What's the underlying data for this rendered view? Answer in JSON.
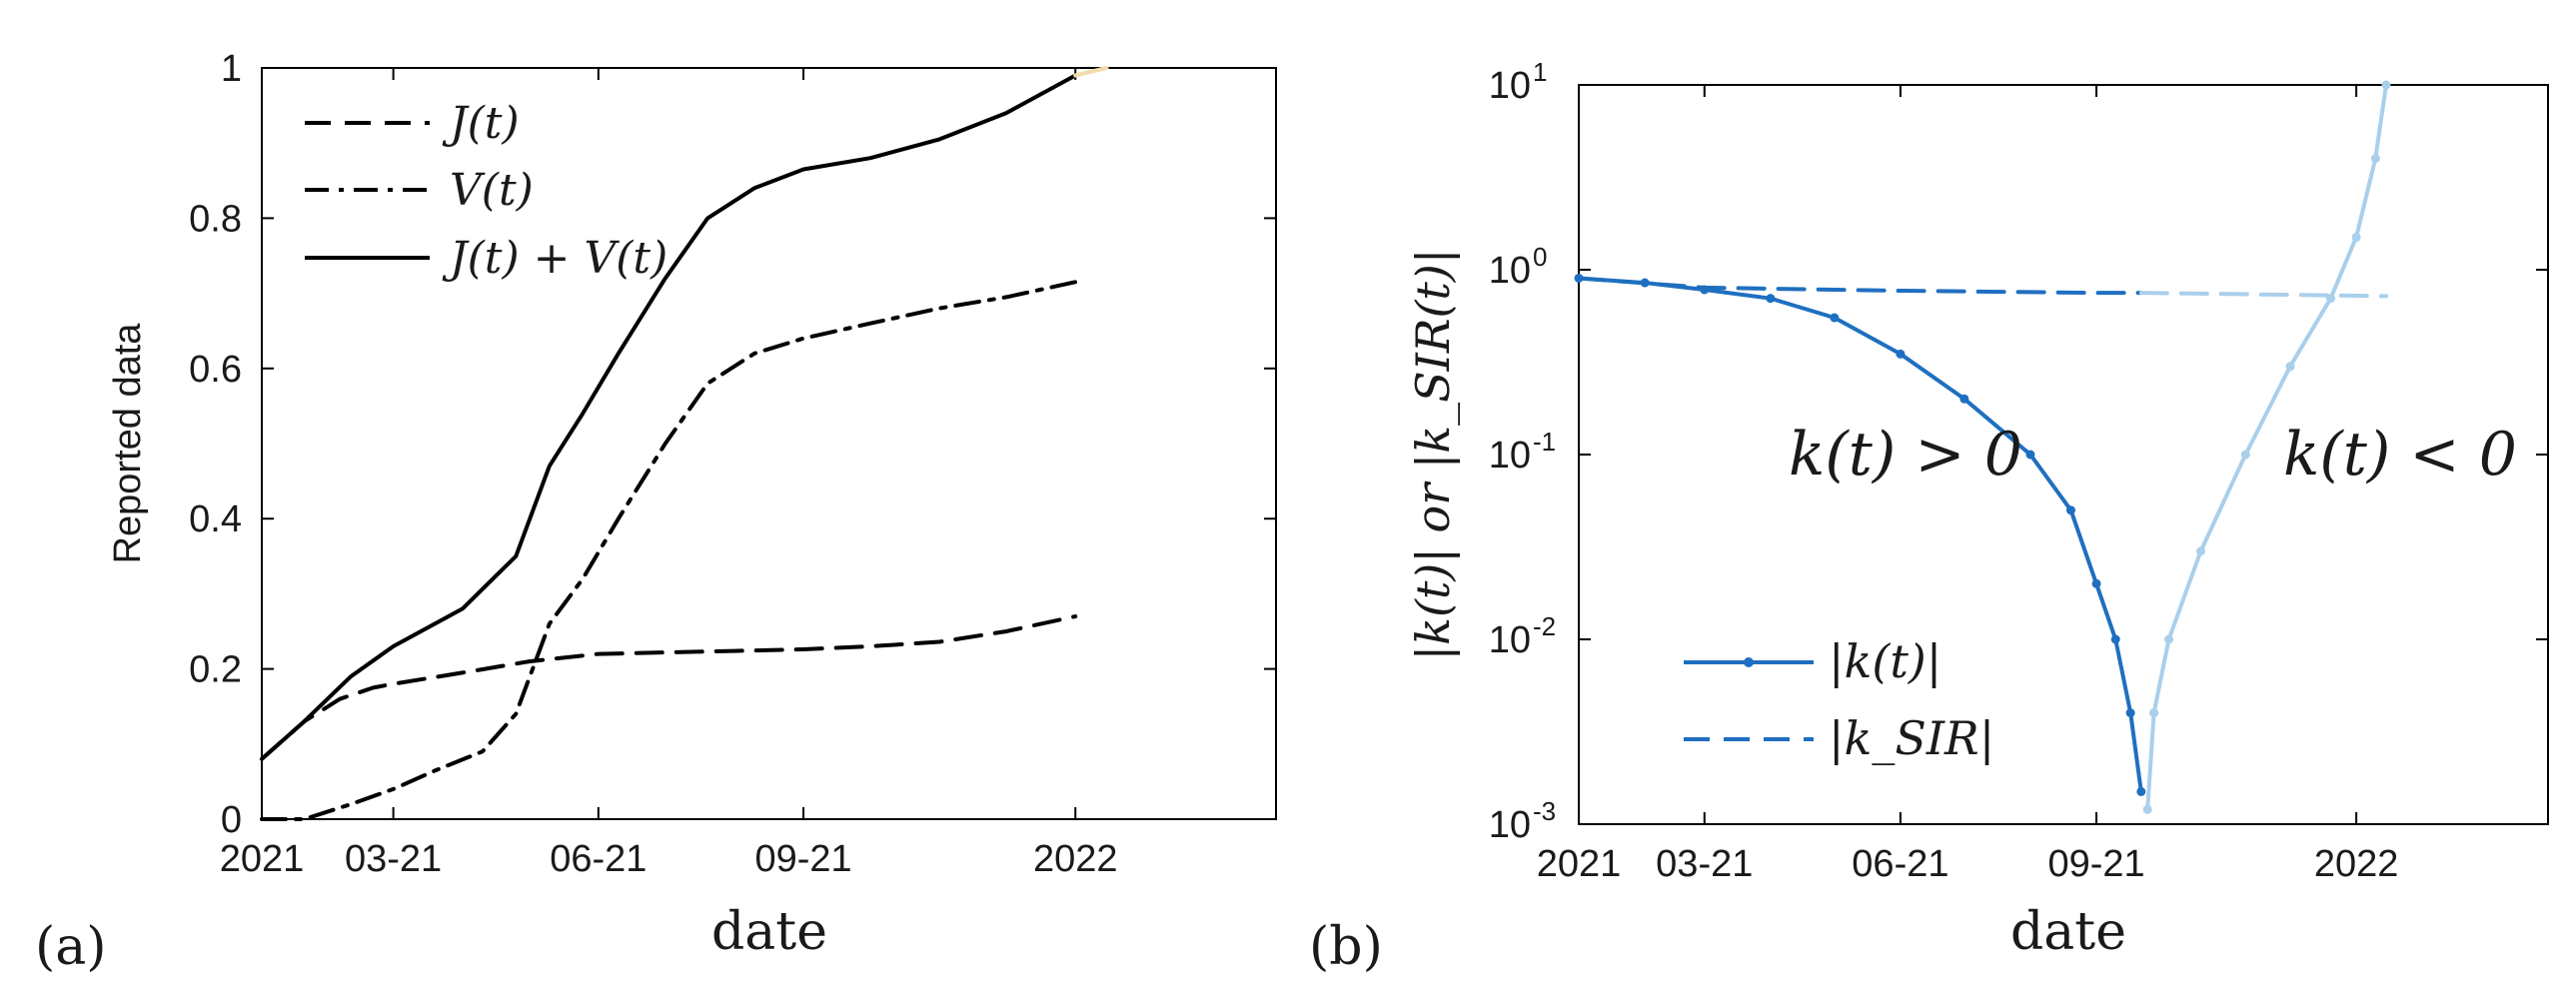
{
  "panels": {
    "a": {
      "tag": "(a)"
    },
    "b": {
      "tag": "(b)"
    }
  },
  "chart_data": [
    {
      "type": "line",
      "xlabel": "date",
      "ylabel": "Reported data",
      "ylim": [
        0,
        1
      ],
      "xlim": [
        "2021-01-01",
        "2022-04-01"
      ],
      "x_ticks": [
        {
          "date": "2021-01-01",
          "label": "2021"
        },
        {
          "date": "2021-03-01",
          "label": "03-21"
        },
        {
          "date": "2021-06-01",
          "label": "06-21"
        },
        {
          "date": "2021-09-01",
          "label": "09-21"
        },
        {
          "date": "2022-01-01",
          "label": "2022"
        }
      ],
      "y_ticks": [
        {
          "value": 0,
          "label": "0"
        },
        {
          "value": 0.2,
          "label": "0.2"
        },
        {
          "value": 0.4,
          "label": "0.4"
        },
        {
          "value": 0.6,
          "label": "0.6"
        },
        {
          "value": 0.8,
          "label": "0.8"
        },
        {
          "value": 1,
          "label": "1"
        }
      ],
      "legend_position": "top-left",
      "series": [
        {
          "name": "J(t)",
          "style": "dashed",
          "color": "#000000",
          "x": [
            "2021-01-01",
            "2021-01-20",
            "2021-02-05",
            "2021-02-20",
            "2021-03-01",
            "2021-04-01",
            "2021-05-01",
            "2021-06-01",
            "2021-07-01",
            "2021-08-01",
            "2021-09-01",
            "2021-10-01",
            "2021-11-01",
            "2021-12-01",
            "2022-01-01"
          ],
          "y": [
            0.08,
            0.13,
            0.16,
            0.175,
            0.18,
            0.195,
            0.21,
            0.22,
            0.222,
            0.224,
            0.226,
            0.23,
            0.236,
            0.25,
            0.27
          ]
        },
        {
          "name": "V(t)",
          "style": "dash-dot",
          "color": "#000000",
          "x": [
            "2021-01-01",
            "2021-01-20",
            "2021-02-10",
            "2021-03-01",
            "2021-03-20",
            "2021-04-10",
            "2021-04-25",
            "2021-05-10",
            "2021-05-25",
            "2021-06-10",
            "2021-07-01",
            "2021-07-20",
            "2021-08-10",
            "2021-09-01",
            "2021-10-01",
            "2021-11-01",
            "2021-12-01",
            "2022-01-01"
          ],
          "y": [
            0,
            0,
            0.02,
            0.04,
            0.065,
            0.09,
            0.14,
            0.26,
            0.32,
            0.4,
            0.5,
            0.58,
            0.62,
            0.64,
            0.66,
            0.68,
            0.695,
            0.715
          ]
        },
        {
          "name": "J(t) + V(t)",
          "style": "solid",
          "color": "#000000",
          "x": [
            "2021-01-01",
            "2021-01-20",
            "2021-02-10",
            "2021-03-01",
            "2021-04-01",
            "2021-04-25",
            "2021-05-10",
            "2021-05-25",
            "2021-06-10",
            "2021-07-01",
            "2021-07-20",
            "2021-08-10",
            "2021-09-01",
            "2021-10-01",
            "2021-11-01",
            "2021-12-01",
            "2022-01-01"
          ],
          "y": [
            0.08,
            0.13,
            0.19,
            0.23,
            0.28,
            0.35,
            0.47,
            0.54,
            0.62,
            0.72,
            0.8,
            0.84,
            0.865,
            0.88,
            0.905,
            0.94,
            0.99
          ]
        },
        {
          "style": "solid",
          "color": "#f2dcae",
          "x": [
            "2022-01-01",
            "2022-01-15"
          ],
          "y": [
            0.99,
            1.0
          ]
        }
      ]
    },
    {
      "type": "line",
      "xlabel": "date",
      "ylabel": "|k(t)| or |k_SIR(t)|",
      "y_scale": "log",
      "ylim": [
        0.001,
        10
      ],
      "xlim": [
        "2021-01-01",
        "2022-04-01"
      ],
      "x_ticks": [
        {
          "date": "2021-01-01",
          "label": "2021"
        },
        {
          "date": "2021-03-01",
          "label": "03-21"
        },
        {
          "date": "2021-06-01",
          "label": "06-21"
        },
        {
          "date": "2021-09-01",
          "label": "09-21"
        },
        {
          "date": "2022-01-01",
          "label": "2022"
        }
      ],
      "y_ticks": [
        {
          "value": 0.001,
          "base": "10",
          "exp": "-3"
        },
        {
          "value": 0.01,
          "base": "10",
          "exp": "-2"
        },
        {
          "value": 0.1,
          "base": "10",
          "exp": "-1"
        },
        {
          "value": 1,
          "base": "10",
          "exp": "0"
        },
        {
          "value": 10,
          "base": "10",
          "exp": "1"
        }
      ],
      "legend_position": "bottom-left",
      "annotations": [
        "k(t) > 0",
        "k(t) < 0"
      ],
      "series": [
        {
          "name": "|k(t)|",
          "style": "solid-dots",
          "color": "#1f6fc0",
          "x": [
            "2021-01-01",
            "2021-02-01",
            "2021-03-01",
            "2021-04-01",
            "2021-05-01",
            "2021-06-01",
            "2021-07-01",
            "2021-08-01",
            "2021-08-20",
            "2021-09-01",
            "2021-09-10",
            "2021-09-17",
            "2021-09-22"
          ],
          "y": [
            0.9,
            0.85,
            0.78,
            0.7,
            0.55,
            0.35,
            0.2,
            0.1,
            0.05,
            0.02,
            0.01,
            0.004,
            0.0015
          ]
        },
        {
          "style": "solid-dots",
          "color": "#a9cfeb",
          "x": [
            "2021-09-25",
            "2021-09-28",
            "2021-10-05",
            "2021-10-20",
            "2021-11-10",
            "2021-12-01",
            "2021-12-20",
            "2022-01-01",
            "2022-01-10",
            "2022-01-15"
          ],
          "y": [
            0.0012,
            0.004,
            0.01,
            0.03,
            0.1,
            0.3,
            0.7,
            1.5,
            4,
            10
          ]
        },
        {
          "name": "|k_SIR|",
          "style": "dashed",
          "color": "#1f6fc0",
          "x": [
            "2021-01-01",
            "2021-03-01",
            "2021-06-01",
            "2021-09-01",
            "2021-09-22"
          ],
          "y": [
            0.9,
            0.8,
            0.77,
            0.75,
            0.75
          ]
        },
        {
          "style": "dashed",
          "color": "#a9cfeb",
          "x": [
            "2021-09-22",
            "2022-01-15"
          ],
          "y": [
            0.75,
            0.72
          ]
        }
      ]
    }
  ]
}
